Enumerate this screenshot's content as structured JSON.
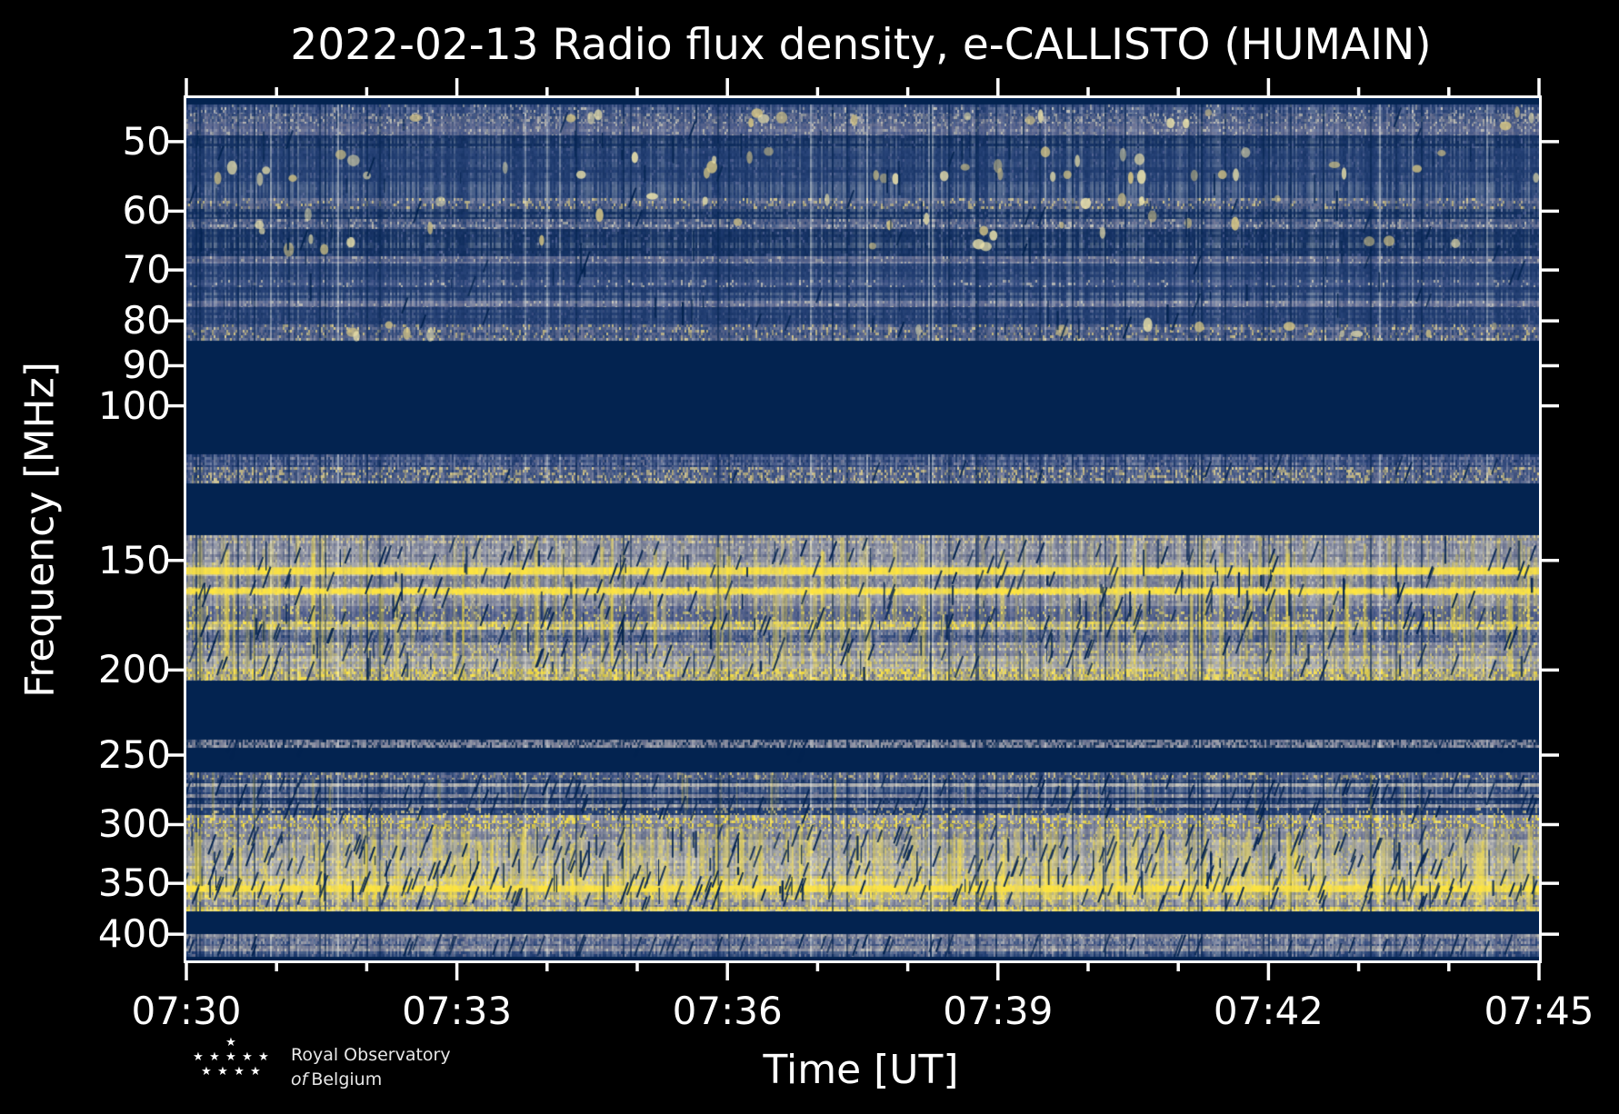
{
  "chart_data": {
    "type": "heatmap",
    "subtype": "radio-spectrogram",
    "title": "2022-02-13 Radio flux density, e-CALLISTO (HUMAIN)",
    "xlabel": "Time [UT]",
    "ylabel": "Frequency [MHz]",
    "grid": false,
    "legend": "none",
    "x_axis": {
      "start": "07:30",
      "end": "07:45",
      "major_ticks": [
        {
          "label": "07:30",
          "minute": 0
        },
        {
          "label": "07:33",
          "minute": 3
        },
        {
          "label": "07:36",
          "minute": 6
        },
        {
          "label": "07:39",
          "minute": 9
        },
        {
          "label": "07:42",
          "minute": 12
        },
        {
          "label": "07:45",
          "minute": 15
        }
      ],
      "total_minutes": 15,
      "minor_tick_every_minutes": 1
    },
    "y_axis": {
      "scale": "log",
      "range_mhz": [
        44.6,
        428.5
      ],
      "ticks_mhz": [
        50,
        60,
        70,
        80,
        90,
        100,
        150,
        200,
        250,
        300,
        350,
        400
      ],
      "inverted": "low frequency at top"
    },
    "palette": {
      "navy": "#032350",
      "deep": "#112e5e",
      "blue": "#1e3a6e",
      "blue2": "#2c477c",
      "lblue": "#47598c",
      "slate": "#6e7494",
      "gray": "#9195a1",
      "pale": "#b8b6ae",
      "tan": "#d4c484",
      "cream": "#ede3ab",
      "pyellow": "#ded076",
      "yellow": "#ffe53e"
    },
    "bands": [
      {
        "f": [
          44.6,
          45.4
        ],
        "kind": "flat",
        "desc": "dark top margin strip"
      },
      {
        "f": [
          45.4,
          84.3
        ],
        "kind": "noise",
        "desc": "45-84 MHz blue galactic background noise with sporadic bright interference blobs",
        "rows": [
          [
            45.4,
            46.4,
            "blue",
            "lblue",
            0.06,
            "pale"
          ],
          [
            46.4,
            47.7,
            "blue2",
            "slate",
            0.18,
            "pale"
          ],
          [
            47.7,
            49.2,
            "lblue",
            "slate",
            0.12,
            "pale"
          ],
          [
            49.2,
            50.8,
            "deep",
            "blue",
            0.05,
            "lblue"
          ],
          [
            50.8,
            55.5,
            "blue",
            "blue2",
            0.06,
            "lblue"
          ],
          [
            55.5,
            58.0,
            "blue",
            "blue2",
            0.05,
            "lblue"
          ],
          [
            58.0,
            59.6,
            "blue2",
            "slate",
            0.15,
            "tan"
          ],
          [
            59.6,
            61.3,
            "deep",
            "blue",
            0.05,
            "lblue"
          ],
          [
            61.3,
            62.9,
            "blue2",
            "slate",
            0.12,
            "pale"
          ],
          [
            62.9,
            67.6,
            "deep",
            "blue",
            0.06,
            "lblue"
          ],
          [
            67.6,
            68.9,
            "lblue",
            "slate",
            0.1,
            "pale"
          ],
          [
            68.9,
            71.9,
            "blue",
            "blue2",
            0.05,
            "lblue"
          ],
          [
            71.9,
            73.3,
            "blue2",
            "lblue",
            0.1,
            "pale"
          ],
          [
            73.3,
            75.9,
            "blue",
            "blue2",
            0.06,
            "lblue"
          ],
          [
            75.9,
            77.1,
            "lblue",
            "slate",
            0.1,
            "pale"
          ],
          [
            77.1,
            80.7,
            "blue",
            "blue2",
            0.07,
            "lblue"
          ],
          [
            80.7,
            84.3,
            "blue2",
            "slate",
            0.15,
            "tan"
          ]
        ],
        "blobs": [
          {
            "f": [
              46.2,
              48.0
            ],
            "count": 18
          },
          {
            "f": [
              51.0,
              55.3
            ],
            "count": 40
          },
          {
            "f": [
              57.5,
              66.5
            ],
            "count": 34
          },
          {
            "f": [
              80.8,
              84.0
            ],
            "count": 14
          }
        ],
        "slashcount": 45,
        "darkv": 70
      },
      {
        "f": [
          84.3,
          113.5
        ],
        "kind": "flat",
        "desc": "blanked band 84-113 MHz (FM region filtered), flat dark navy"
      },
      {
        "f": [
          113.5,
          122.7
        ],
        "kind": "noise",
        "desc": "aircraft band interference 113-123 MHz",
        "rows": [
          [
            113.5,
            117.5,
            "blue",
            "lblue",
            0.15,
            "slate"
          ],
          [
            117.5,
            122.7,
            "blue2",
            "slate",
            0.25,
            "tan"
          ]
        ],
        "slashcount": 14
      },
      {
        "f": [
          122.7,
          140.3
        ],
        "kind": "flat",
        "desc": "quiet band 123-140 MHz"
      },
      {
        "f": [
          140.3,
          205.8
        ],
        "kind": "noise",
        "desc": "strong broadcast RFI 140-206 MHz with bright carrier lines near 154 and 163 MHz",
        "rows": [
          [
            140.3,
            143.5,
            "slate",
            "gray",
            0.3,
            "tan"
          ],
          [
            143.5,
            150.8,
            "slate",
            "gray",
            0.18,
            "pale"
          ],
          [
            150.8,
            156.2,
            "gray",
            "pale",
            0.15,
            "pyellow"
          ],
          [
            156.2,
            160.9,
            "slate",
            "gray",
            0.15,
            "pale"
          ],
          [
            160.9,
            164.2,
            "gray",
            "pyellow",
            0.25,
            "yellow"
          ],
          [
            164.2,
            169.0,
            "slate",
            "gray",
            0.12,
            "pale"
          ],
          [
            169.0,
            176.0,
            "lblue",
            "slate",
            0.15,
            "pyellow"
          ],
          [
            176.0,
            180.0,
            "gray",
            "pyellow",
            0.3,
            "yellow"
          ],
          [
            180.0,
            186.0,
            "blue2",
            "slate",
            0.12,
            "gray"
          ],
          [
            186.0,
            193.0,
            "slate",
            "gray",
            0.2,
            "pyellow"
          ],
          [
            193.0,
            199.5,
            "gray",
            "pale",
            0.25,
            "pyellow"
          ],
          [
            199.5,
            205.8,
            "slate",
            "pyellow",
            0.3,
            "yellow"
          ]
        ],
        "lines": [
          {
            "f": 154.2,
            "h": 8,
            "color": "yellow"
          },
          {
            "f": 162.6,
            "h": 6,
            "color": "yellow"
          }
        ],
        "vstreaks": {
          "count": 240,
          "w": [
            1,
            5
          ],
          "alpha": [
            0.1,
            0.45
          ]
        },
        "slashcount": 220,
        "darkv": 110
      },
      {
        "f": [
          205.8,
          240.0
        ],
        "kind": "flat",
        "desc": "quiet band 206-240 MHz"
      },
      {
        "f": [
          240.0,
          245.5
        ],
        "kind": "noise",
        "desc": "thin grey interference line near 243 MHz",
        "rows": [
          [
            240.0,
            245.5,
            "slate",
            "gray",
            0.35,
            "navy"
          ]
        ],
        "slashcount": 8
      },
      {
        "f": [
          245.5,
          261.5
        ],
        "kind": "flat",
        "desc": "quiet band 246-261 MHz"
      },
      {
        "f": [
          261.5,
          300.0
        ],
        "kind": "noise",
        "desc": "striped interference 262-300 MHz",
        "rows": [
          [
            261.5,
            266.5,
            "blue2",
            "slate",
            0.2,
            "tan"
          ],
          [
            266.5,
            269.0,
            "deep",
            "blue",
            0.05,
            "lblue"
          ],
          [
            269.0,
            272.0,
            "gray",
            "pale",
            0.1,
            "slate"
          ],
          [
            272.0,
            277.0,
            "blue",
            "blue2",
            0.1,
            "slate"
          ],
          [
            277.0,
            279.5,
            "slate",
            "gray",
            0.12,
            "pale"
          ],
          [
            279.5,
            284.5,
            "deep",
            "blue",
            0.08,
            "lblue"
          ],
          [
            284.5,
            287.0,
            "slate",
            "gray",
            0.15,
            "pale"
          ],
          [
            287.0,
            292.5,
            "blue",
            "blue2",
            0.15,
            "tan"
          ],
          [
            292.5,
            300.0,
            "slate",
            "gray",
            0.3,
            "yellow"
          ]
        ],
        "vstreaks": {
          "count": 55,
          "w": [
            1,
            3
          ],
          "alpha": [
            0.08,
            0.28
          ]
        },
        "slashcount": 90
      },
      {
        "f": [
          300.0,
          377.0
        ],
        "kind": "noise",
        "desc": "bright RFI 300-377 MHz with many yellow time streaks and carrier line near 355 MHz",
        "rows": [
          [
            300.0,
            303.0,
            "slate",
            "gray",
            0.35,
            "yellow"
          ],
          [
            303.0,
            312.0,
            "slate",
            "gray",
            0.2,
            "pyellow"
          ],
          [
            312.0,
            327.0,
            "gray",
            "pale",
            0.15,
            "pyellow"
          ],
          [
            327.0,
            343.0,
            "gray",
            "pale",
            0.22,
            "pyellow"
          ],
          [
            343.0,
            352.5,
            "pale",
            "pyellow",
            0.25,
            "yellow"
          ],
          [
            352.5,
            358.0,
            "gray",
            "pyellow",
            0.2,
            "yellow"
          ],
          [
            358.0,
            365.0,
            "gray",
            "pyellow",
            0.2,
            "yellow"
          ],
          [
            365.0,
            372.0,
            "slate",
            "gray",
            0.2,
            "pyellow"
          ],
          [
            372.0,
            377.0,
            "pyellow",
            "yellow",
            0.25,
            "gray"
          ]
        ],
        "lines": [
          {
            "f": 355.0,
            "h": 7,
            "color": "yellow"
          }
        ],
        "vstreaks": {
          "count": 320,
          "w": [
            1,
            6
          ],
          "alpha": [
            0.12,
            0.5
          ]
        },
        "slashcount": 260,
        "darkv": 100
      },
      {
        "f": [
          377.0,
          400.0
        ],
        "kind": "flat",
        "desc": "quiet band 377-400 MHz"
      },
      {
        "f": [
          400.0,
          424.0
        ],
        "kind": "noise",
        "desc": "grey-blue noise band 400-424 MHz",
        "rows": [
          [
            400.0,
            405.0,
            "slate",
            "gray",
            0.2,
            "pale"
          ],
          [
            405.0,
            412.0,
            "blue2",
            "slate",
            0.2,
            "gray"
          ],
          [
            412.0,
            418.0,
            "slate",
            "gray",
            0.25,
            "pale"
          ],
          [
            418.0,
            424.0,
            "blue",
            "blue2",
            0.1,
            "slate"
          ]
        ],
        "slashcount": 55
      },
      {
        "f": [
          424.0,
          428.5
        ],
        "kind": "flat",
        "desc": "dark bottom margin strip"
      }
    ]
  },
  "footer": {
    "logo_line1": "Royal Observatory",
    "logo_line2_italic": "of",
    "logo_line2": "Belgium",
    "logo_star_rows": [
      1,
      5,
      4
    ],
    "star_icon": "★"
  }
}
